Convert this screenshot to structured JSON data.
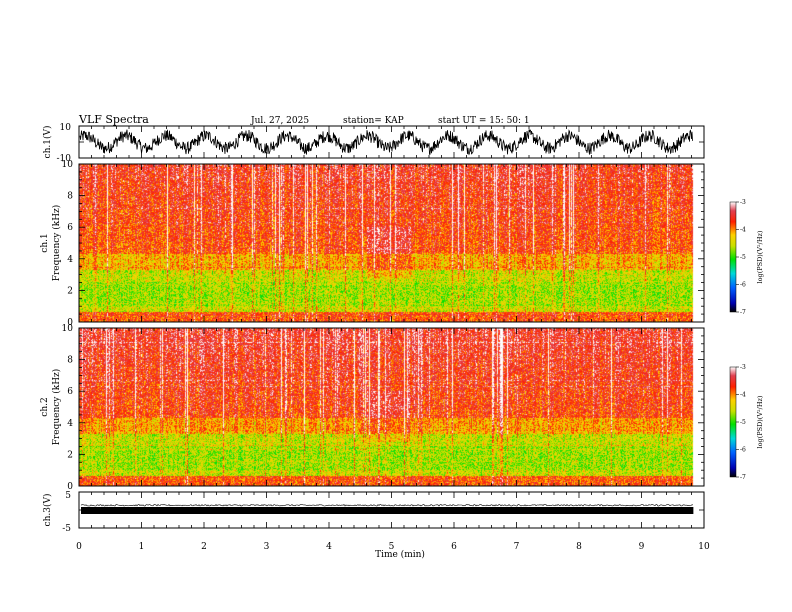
{
  "header": {
    "title": "VLF Spectra",
    "date": "Jul. 27, 2025",
    "station": "station= KAP",
    "start": "start  UT =   15: 50: 1"
  },
  "chart_data": [
    {
      "type": "line",
      "name": "ch1-waveform",
      "ylabel": "ch.1(V)",
      "ylim": [
        -10,
        10
      ],
      "ytick_labels": [
        "10",
        "-10"
      ],
      "xlim": [
        0,
        10
      ]
    },
    {
      "type": "heatmap",
      "name": "ch1-spectrogram",
      "ylabel": "ch.1\nFrequency (kHz)",
      "ylim": [
        0,
        10
      ],
      "ytick_labels": [
        "0",
        "2",
        "4",
        "6",
        "8",
        "10"
      ],
      "xlim": [
        0,
        10
      ],
      "data_end_min": 9.83,
      "colorbar": {
        "label": "log(PSD)(V²/Hz)",
        "range": [
          -7,
          -3
        ],
        "tick_labels": [
          "-3",
          "-4",
          "-5",
          "-6",
          "-7"
        ]
      }
    },
    {
      "type": "heatmap",
      "name": "ch2-spectrogram",
      "ylabel": "ch.2\nFrequency (kHz)",
      "ylim": [
        0,
        10
      ],
      "ytick_labels": [
        "0",
        "2",
        "4",
        "6",
        "8",
        "10"
      ],
      "xlim": [
        0,
        10
      ],
      "data_end_min": 9.83,
      "colorbar": {
        "label": "log(PSD)(V²/Hz)",
        "range": [
          -7,
          -3
        ],
        "tick_labels": [
          "-3",
          "-4",
          "-5",
          "-6",
          "-7"
        ]
      }
    },
    {
      "type": "line",
      "name": "ch3-waveform",
      "ylabel": "ch.3(V)",
      "ylim": [
        -5,
        5
      ],
      "ytick_labels": [
        "5",
        "-5"
      ],
      "xlim": [
        0,
        10
      ],
      "xlabel": "Time  (min)",
      "xtick_labels": [
        "0",
        "1",
        "2",
        "3",
        "4",
        "5",
        "6",
        "7",
        "8",
        "9",
        "10"
      ]
    }
  ]
}
